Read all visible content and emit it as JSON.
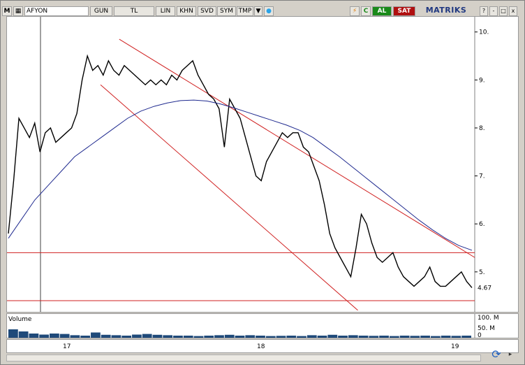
{
  "toolbar": {
    "m_label": "M",
    "symbol": "AFYON",
    "period": "GUN",
    "currency": "TL",
    "scale": "LIN",
    "khn": "KHN",
    "svd": "SVD",
    "sym": "SYM",
    "tmp": "TMP",
    "dropdown": "▼",
    "twitter_icon": "twitter-icon",
    "flash_icon": "flash-icon",
    "refresh": "C",
    "buy": "AL",
    "sell": "SAT",
    "brand": "MATRİKS",
    "help": "?",
    "minimize": "-",
    "restore": "□",
    "close": "x",
    "accent_colors": {
      "buy": "#1a8a1a",
      "sell": "#b01010",
      "brand": "#203880"
    }
  },
  "chart_data": {
    "type": "line",
    "title": "",
    "yaxis": {
      "ticks": [
        "10.",
        "9.",
        "8.",
        "7.",
        "6.",
        "5."
      ],
      "tick_values": [
        10,
        9,
        8,
        7,
        6,
        5
      ],
      "range": [
        4.4,
        10.2
      ],
      "last_price_label": "4.67",
      "last_price": 4.67
    },
    "xaxis": {
      "ticks": [
        "17",
        "18",
        "19"
      ]
    },
    "series": [
      {
        "style": "price",
        "color": "#000000",
        "values": [
          5.8,
          6.9,
          8.2,
          8.0,
          7.8,
          8.1,
          7.5,
          7.9,
          8.0,
          7.7,
          7.8,
          7.9,
          8.0,
          8.3,
          9.0,
          9.5,
          9.2,
          9.3,
          9.1,
          9.4,
          9.2,
          9.1,
          9.3,
          9.2,
          9.1,
          9.0,
          8.9,
          9.0,
          8.9,
          9.0,
          8.9,
          9.1,
          9.0,
          9.2,
          9.3,
          9.4,
          9.1,
          8.9,
          8.7,
          8.6,
          8.4,
          7.6,
          8.6,
          8.4,
          8.2,
          7.8,
          7.4,
          7.0,
          6.9,
          7.3,
          7.5,
          7.7,
          7.9,
          7.8,
          7.9,
          7.9,
          7.6,
          7.5,
          7.2,
          6.9,
          6.4,
          5.8,
          5.5,
          5.3,
          5.1,
          4.9,
          5.5,
          6.2,
          6.0,
          5.6,
          5.3,
          5.2,
          5.3,
          5.4,
          5.1,
          4.9,
          4.8,
          4.7,
          4.8,
          4.9,
          5.1,
          4.8,
          4.7,
          4.7,
          4.8,
          4.9,
          5.0,
          4.8,
          4.67
        ]
      },
      {
        "style": "moving-average",
        "color": "#1f2a8f",
        "values": [
          5.7,
          6.1,
          6.5,
          6.8,
          7.1,
          7.4,
          7.6,
          7.8,
          8.0,
          8.2,
          8.35,
          8.45,
          8.52,
          8.57,
          8.58,
          8.56,
          8.5,
          8.42,
          8.33,
          8.24,
          8.15,
          8.06,
          7.95,
          7.8,
          7.6,
          7.4,
          7.18,
          6.96,
          6.74,
          6.52,
          6.3,
          6.08,
          5.88,
          5.7,
          5.55,
          5.45
        ]
      }
    ],
    "horizontal_lines": [
      {
        "value": 5.4,
        "color": "#d02020"
      },
      {
        "value": 4.4,
        "color": "#d02020"
      }
    ],
    "channel_lines": [
      {
        "from": [
          0.24,
          9.85
        ],
        "to": [
          1.0,
          5.3
        ],
        "color": "#d02020"
      },
      {
        "from": [
          0.2,
          8.9
        ],
        "to": [
          0.75,
          4.2
        ],
        "color": "#d02020"
      }
    ],
    "volume": {
      "label": "Volume",
      "ticks": [
        "100. M",
        "50. M",
        "0"
      ],
      "tick_values": [
        100,
        50,
        0
      ],
      "values": [
        40,
        30,
        20,
        15,
        20,
        18,
        12,
        10,
        25,
        14,
        12,
        10,
        15,
        18,
        14,
        12,
        10,
        10,
        8,
        10,
        12,
        14,
        10,
        12,
        10,
        8,
        9,
        10,
        8,
        12,
        10,
        14,
        10,
        12,
        10,
        9,
        10,
        8,
        10,
        9,
        10,
        8,
        10,
        9,
        10
      ],
      "color": "#1f4a7a"
    }
  }
}
